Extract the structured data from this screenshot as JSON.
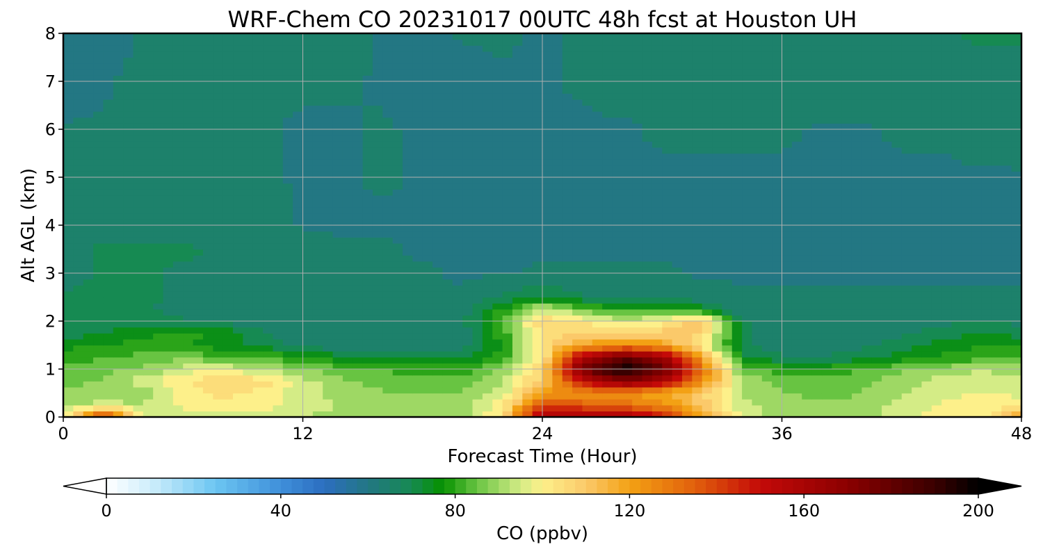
{
  "chart_data": {
    "type": "heatmap",
    "title": "WRF-Chem CO  20231017 00UTC 48h fcst at Houston UH",
    "xlabel": "Forecast Time (Hour)",
    "ylabel": "Alt AGL (km)",
    "xlim": [
      0,
      48
    ],
    "ylim": [
      0,
      8
    ],
    "x_ticks": [
      0,
      12,
      24,
      36,
      48
    ],
    "y_ticks": [
      0,
      1,
      2,
      3,
      4,
      5,
      6,
      7,
      8
    ],
    "grid": true,
    "colorbar": {
      "label": "CO  (ppbv)",
      "range": [
        0,
        200
      ],
      "ticks": [
        0,
        40,
        80,
        120,
        160,
        200
      ],
      "extend": "both",
      "stops": [
        {
          "value": 0,
          "color": "#ffffff"
        },
        {
          "value": 10,
          "color": "#cfeefb"
        },
        {
          "value": 25,
          "color": "#6cc6f2"
        },
        {
          "value": 40,
          "color": "#3f8fda"
        },
        {
          "value": 50,
          "color": "#2c6ec0"
        },
        {
          "value": 60,
          "color": "#237783"
        },
        {
          "value": 70,
          "color": "#168a52"
        },
        {
          "value": 77,
          "color": "#069100"
        },
        {
          "value": 85,
          "color": "#68c442"
        },
        {
          "value": 95,
          "color": "#d4ec86"
        },
        {
          "value": 100,
          "color": "#fdf08a"
        },
        {
          "value": 110,
          "color": "#fbc96a"
        },
        {
          "value": 120,
          "color": "#f3a114"
        },
        {
          "value": 135,
          "color": "#e15f0c"
        },
        {
          "value": 150,
          "color": "#c40a08"
        },
        {
          "value": 170,
          "color": "#8b0000"
        },
        {
          "value": 190,
          "color": "#3a0000"
        },
        {
          "value": 200,
          "color": "#000000"
        }
      ]
    },
    "x": [
      0,
      2,
      4,
      6,
      8,
      10,
      12,
      14,
      16,
      18,
      20,
      22,
      24,
      26,
      28,
      30,
      32,
      34,
      36,
      38,
      40,
      42,
      44,
      46,
      48
    ],
    "y": [
      0,
      0.25,
      0.5,
      0.75,
      1,
      1.25,
      1.5,
      1.75,
      2,
      2.25,
      2.5,
      3,
      3.5,
      4,
      5,
      6,
      7,
      8
    ],
    "z": [
      [
        95,
        150,
        95,
        92,
        92,
        92,
        92,
        92,
        90,
        90,
        90,
        105,
        160,
        165,
        165,
        150,
        120,
        95,
        90,
        88,
        90,
        95,
        100,
        100,
        120
      ],
      [
        90,
        95,
        92,
        100,
        100,
        100,
        95,
        92,
        88,
        88,
        90,
        100,
        140,
        135,
        130,
        125,
        110,
        95,
        90,
        88,
        88,
        95,
        98,
        100,
        100
      ],
      [
        88,
        90,
        90,
        100,
        105,
        100,
        95,
        90,
        88,
        88,
        88,
        95,
        120,
        125,
        125,
        118,
        108,
        92,
        88,
        86,
        88,
        92,
        96,
        98,
        96
      ],
      [
        86,
        88,
        95,
        102,
        108,
        105,
        95,
        88,
        86,
        85,
        86,
        92,
        110,
        150,
        170,
        160,
        125,
        92,
        86,
        85,
        86,
        90,
        94,
        96,
        94
      ],
      [
        84,
        86,
        88,
        95,
        96,
        93,
        88,
        84,
        82,
        80,
        80,
        88,
        108,
        175,
        200,
        180,
        130,
        85,
        80,
        80,
        82,
        86,
        90,
        92,
        90
      ],
      [
        80,
        82,
        84,
        86,
        84,
        82,
        78,
        74,
        72,
        72,
        72,
        80,
        100,
        160,
        180,
        165,
        120,
        75,
        68,
        68,
        70,
        74,
        78,
        80,
        80
      ],
      [
        76,
        78,
        80,
        78,
        74,
        70,
        66,
        64,
        64,
        64,
        66,
        78,
        105,
        118,
        125,
        120,
        100,
        68,
        64,
        64,
        66,
        70,
        75,
        78,
        78
      ],
      [
        70,
        72,
        76,
        80,
        76,
        68,
        64,
        63,
        63,
        63,
        64,
        80,
        100,
        110,
        106,
        110,
        108,
        70,
        63,
        63,
        64,
        66,
        70,
        72,
        70
      ],
      [
        70,
        70,
        70,
        68,
        66,
        64,
        63,
        63,
        63,
        63,
        66,
        85,
        108,
        102,
        95,
        100,
        112,
        68,
        63,
        63,
        63,
        64,
        66,
        68,
        66
      ],
      [
        68,
        68,
        68,
        66,
        65,
        64,
        63,
        63,
        63,
        63,
        64,
        78,
        95,
        85,
        78,
        80,
        75,
        64,
        63,
        63,
        63,
        63,
        64,
        64,
        64
      ],
      [
        68,
        68,
        68,
        67,
        66,
        65,
        64,
        64,
        63,
        63,
        63,
        68,
        72,
        68,
        66,
        65,
        64,
        63,
        63,
        63,
        63,
        63,
        63,
        63,
        63
      ],
      [
        66,
        68,
        68,
        67,
        66,
        65,
        64,
        63,
        63,
        63,
        62,
        62,
        63,
        63,
        63,
        63,
        62,
        62,
        62,
        62,
        62,
        62,
        62,
        62,
        62
      ],
      [
        66,
        68,
        68,
        68,
        67,
        66,
        64,
        63,
        63,
        62,
        62,
        62,
        62,
        62,
        62,
        62,
        62,
        62,
        62,
        62,
        62,
        62,
        62,
        62,
        62
      ],
      [
        64,
        66,
        66,
        66,
        66,
        65,
        62,
        62,
        62,
        62,
        62,
        62,
        62,
        62,
        62,
        62,
        62,
        62,
        62,
        62,
        62,
        62,
        62,
        62,
        62
      ],
      [
        64,
        64,
        64,
        64,
        64,
        63,
        62,
        62,
        63,
        62,
        62,
        62,
        62,
        62,
        62,
        62,
        62,
        62,
        62,
        62,
        62,
        62,
        62,
        62,
        62
      ],
      [
        63,
        63,
        63,
        63,
        63,
        63,
        62,
        62,
        63,
        62,
        61,
        58,
        62,
        62,
        62,
        63,
        63,
        63,
        63,
        62,
        62,
        63,
        63,
        64,
        65
      ],
      [
        60,
        62,
        64,
        64,
        65,
        63,
        63,
        63,
        62,
        58,
        60,
        61,
        62,
        63,
        64,
        64,
        64,
        64,
        65,
        65,
        66,
        66,
        66,
        66,
        66
      ],
      [
        57,
        60,
        63,
        64,
        66,
        64,
        64,
        65,
        62,
        62,
        63,
        64,
        61,
        64,
        65,
        66,
        66,
        66,
        66,
        66,
        66,
        66,
        67,
        68,
        68
      ]
    ]
  }
}
